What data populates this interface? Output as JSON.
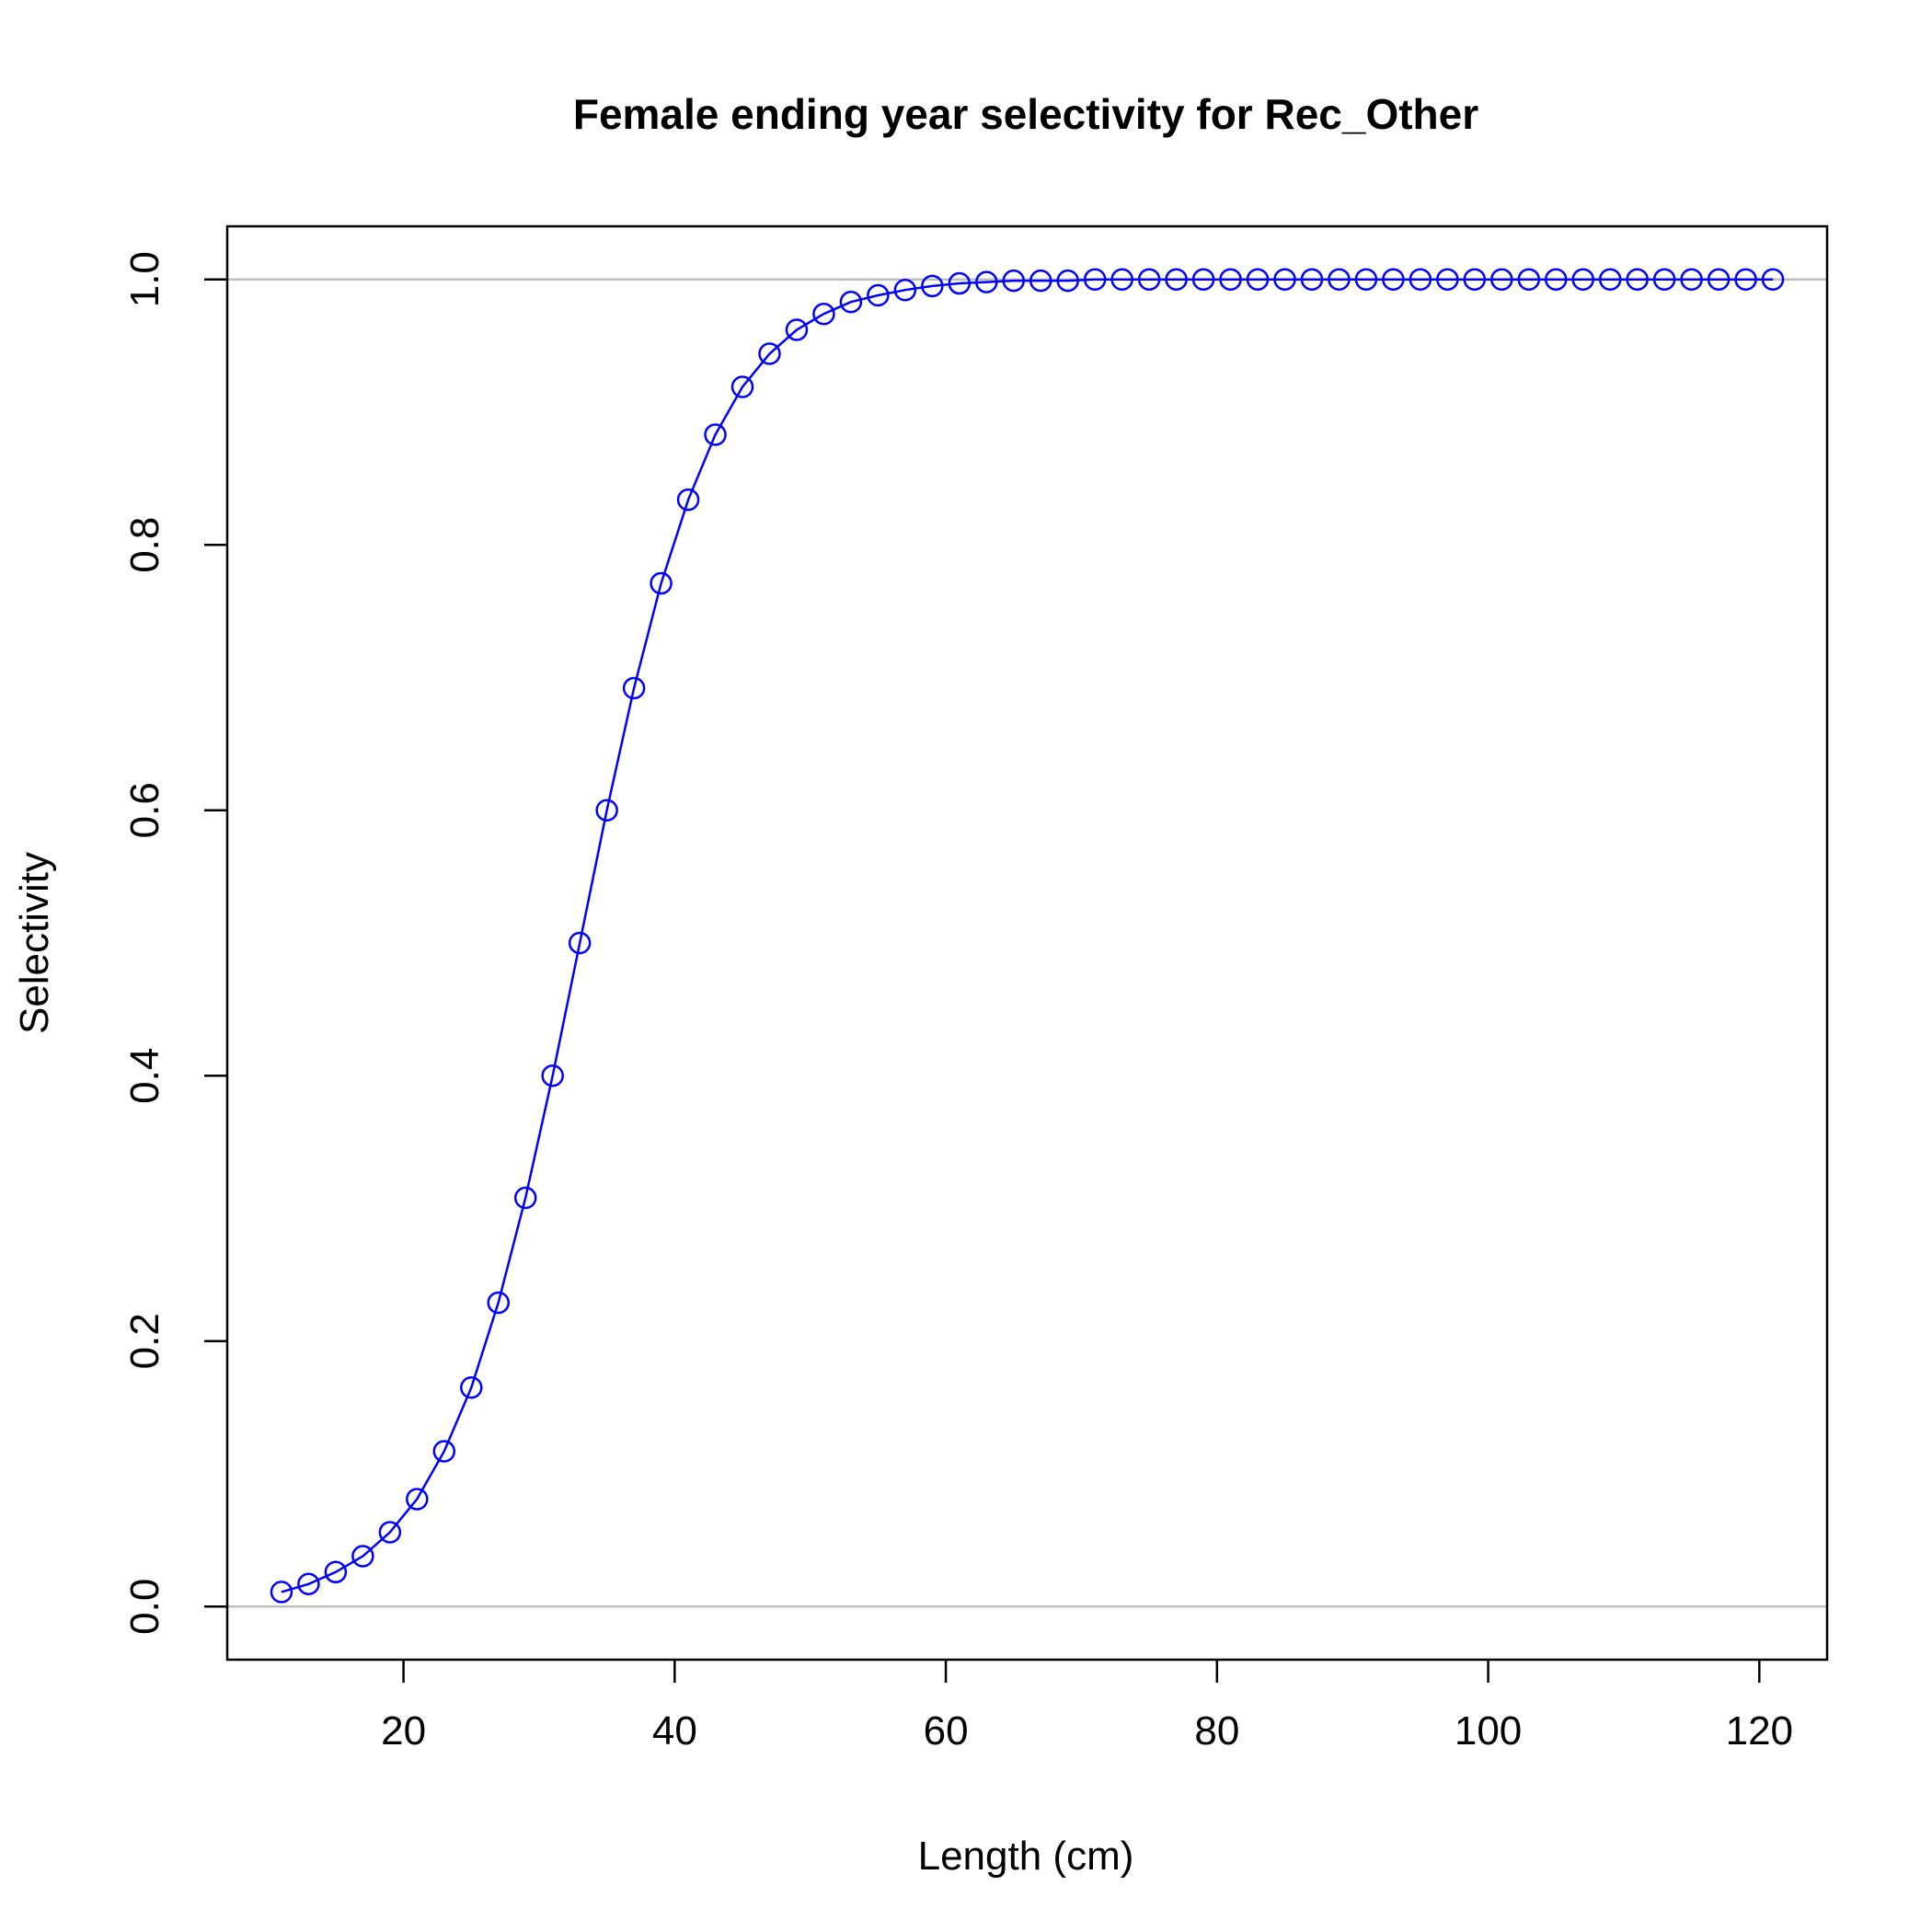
{
  "chart_data": {
    "type": "line",
    "title": "Female ending year selectivity for Rec_Other",
    "xlabel": "Length (cm)",
    "ylabel": "Selectivity",
    "xlim": [
      7,
      125
    ],
    "ylim": [
      -0.04,
      1.04
    ],
    "x_ticks": [
      20,
      40,
      60,
      80,
      100,
      120
    ],
    "y_ticks": [
      0.0,
      0.2,
      0.4,
      0.6,
      0.8,
      1.0
    ],
    "x_tick_labels": [
      "20",
      "40",
      "60",
      "80",
      "100",
      "120"
    ],
    "y_tick_labels": [
      "0.0",
      "0.2",
      "0.4",
      "0.6",
      "0.8",
      "1.0"
    ],
    "reference_lines": [
      0,
      1
    ],
    "series": [
      {
        "color": "#0000FF",
        "marker": "open-circle",
        "x": [
          11,
          13,
          15,
          17,
          19,
          21,
          23,
          25,
          27,
          29,
          31,
          33,
          35,
          37,
          39,
          41,
          43,
          45,
          47,
          49,
          51,
          53,
          55,
          57,
          59,
          61,
          63,
          65,
          67,
          69,
          71,
          73,
          75,
          77,
          79,
          81,
          83,
          85,
          87,
          89,
          91,
          93,
          95,
          97,
          99,
          101,
          103,
          105,
          107,
          109,
          111,
          113,
          115,
          117,
          119,
          121
        ],
        "y": [
          0.011,
          0.017,
          0.026,
          0.038,
          0.056,
          0.081,
          0.117,
          0.165,
          0.229,
          0.308,
          0.4,
          0.5,
          0.6,
          0.692,
          0.771,
          0.834,
          0.883,
          0.919,
          0.944,
          0.962,
          0.974,
          0.983,
          0.988,
          0.992,
          0.995,
          0.997,
          0.998,
          0.999,
          0.999,
          0.999,
          1.0,
          1.0,
          1.0,
          1.0,
          1.0,
          1.0,
          1.0,
          1.0,
          1.0,
          1.0,
          1.0,
          1.0,
          1.0,
          1.0,
          1.0,
          1.0,
          1.0,
          1.0,
          1.0,
          1.0,
          1.0,
          1.0,
          1.0,
          1.0,
          1.0,
          1.0
        ]
      }
    ]
  }
}
